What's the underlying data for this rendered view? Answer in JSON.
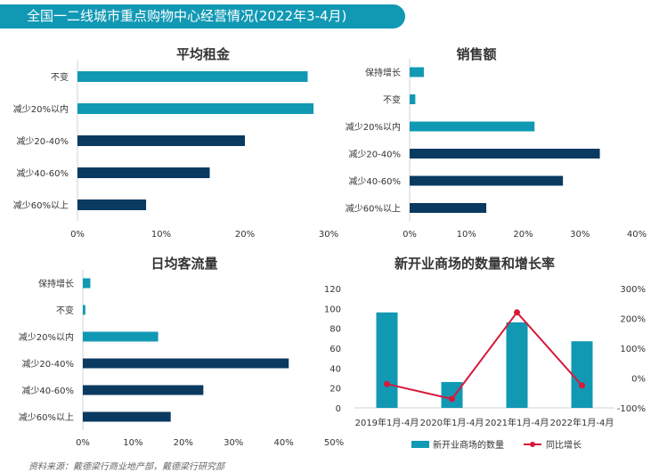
{
  "header": {
    "title": "全国一二线城市重点购物中心经营情况(2022年3-4月)"
  },
  "footer": {
    "source": "资料来源：戴德梁行商业地产部，戴德梁行研究部"
  },
  "colors": {
    "teal": "#1199b4",
    "navy": "#0b3a61",
    "red": "#d7193a",
    "axis": "#cfd3d6",
    "text": "#333333"
  },
  "chart_data": [
    {
      "type": "bar",
      "orientation": "horizontal",
      "title": "平均租金",
      "categories": [
        "不变",
        "减少20%以内",
        "减少20-40%",
        "减少40-60%",
        "减少60%以上"
      ],
      "values": [
        27.5,
        28.2,
        20.0,
        15.8,
        8.2
      ],
      "xlim": [
        0,
        30
      ],
      "ticks": [
        0,
        10,
        20,
        30
      ],
      "tick_labels": [
        "0%",
        "10%",
        "20%",
        "30%"
      ]
    },
    {
      "type": "bar",
      "orientation": "horizontal",
      "title": "销售额",
      "categories": [
        "保持增长",
        "不变",
        "减少20%以内",
        "减少20-40%",
        "减少40-60%",
        "减少60%以上"
      ],
      "values": [
        2.5,
        1.0,
        22.0,
        33.5,
        27.0,
        13.5
      ],
      "xlim": [
        0,
        40
      ],
      "ticks": [
        0,
        10,
        20,
        30,
        40
      ],
      "tick_labels": [
        "0%",
        "10%",
        "20%",
        "30%",
        "40%"
      ]
    },
    {
      "type": "bar",
      "orientation": "horizontal",
      "title": "日均客流量",
      "categories": [
        "保持增长",
        "不变",
        "减少20%以内",
        "减少20-40%",
        "减少40-60%",
        "减少60%以上"
      ],
      "values": [
        1.5,
        0.5,
        15.0,
        41.0,
        24.0,
        17.5
      ],
      "xlim": [
        0,
        50
      ],
      "ticks": [
        0,
        10,
        20,
        30,
        40,
        50
      ],
      "tick_labels": [
        "0%",
        "10%",
        "20%",
        "30%",
        "40%",
        "50%"
      ]
    },
    {
      "type": "bar+line",
      "title": "新开业商场的数量和增长率",
      "categories": [
        "2019年1月-4月",
        "2020年1月-4月",
        "2021年1月-4月",
        "2022年1月-4月"
      ],
      "series": [
        {
          "name": "新开业商场的数量",
          "kind": "bar",
          "axis": "left",
          "values": [
            96,
            26,
            86,
            67
          ]
        },
        {
          "name": "同比增长",
          "kind": "line",
          "axis": "right",
          "values": [
            -20,
            -70,
            220,
            -25
          ]
        }
      ],
      "ylim_left": [
        0,
        120
      ],
      "yticks_left": [
        0,
        20,
        40,
        60,
        80,
        100,
        120
      ],
      "ylim_right": [
        -100,
        300
      ],
      "yticks_right": [
        -100,
        0,
        100,
        200,
        300
      ],
      "ytick_labels_right": [
        "-100%",
        "0%",
        "100%",
        "200%",
        "300%"
      ]
    }
  ]
}
